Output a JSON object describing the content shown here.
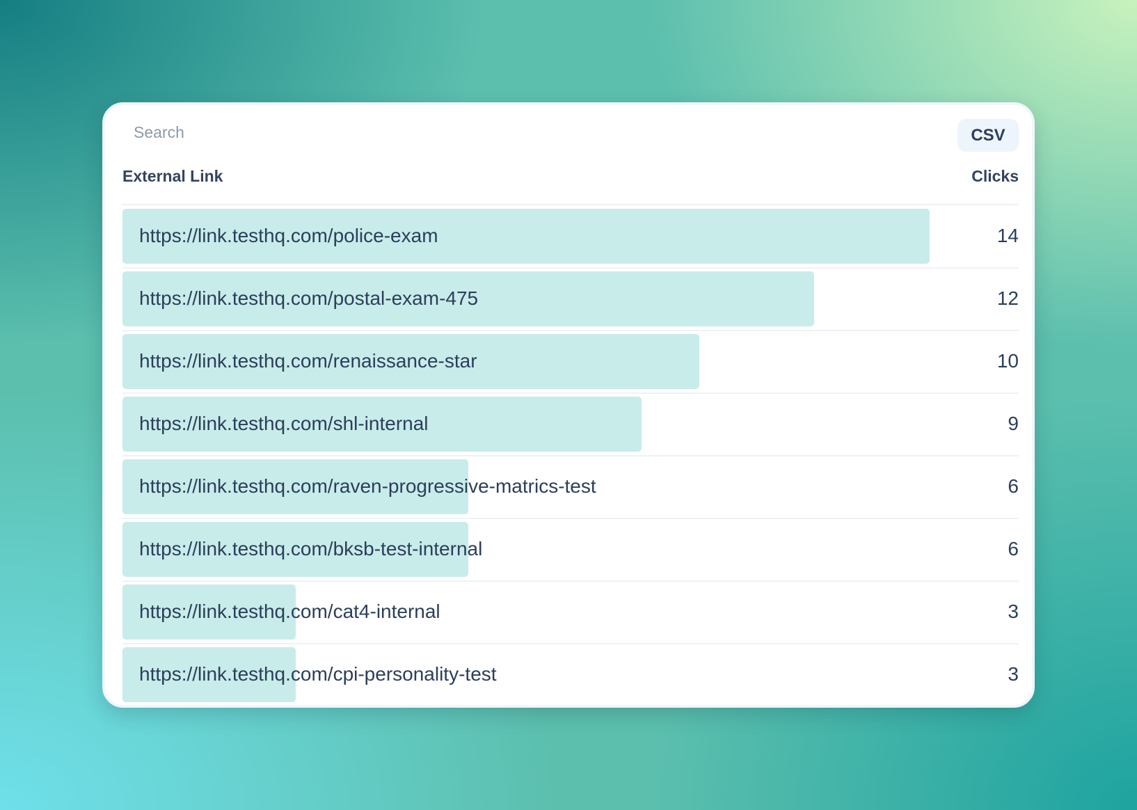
{
  "search": {
    "placeholder": "Search"
  },
  "csv_button": "CSV",
  "table": {
    "columns": [
      "External Link",
      "Clicks"
    ],
    "rows": [
      {
        "link": "https://link.testhq.com/police-exam",
        "clicks": 14
      },
      {
        "link": "https://link.testhq.com/postal-exam-475",
        "clicks": 12
      },
      {
        "link": "https://link.testhq.com/renaissance-star",
        "clicks": 10
      },
      {
        "link": "https://link.testhq.com/shl-internal",
        "clicks": 9
      },
      {
        "link": "https://link.testhq.com/raven-progressive-matrics-test",
        "clicks": 6
      },
      {
        "link": "https://link.testhq.com/bksb-test-internal",
        "clicks": 6
      },
      {
        "link": "https://link.testhq.com/cat4-internal",
        "clicks": 3
      },
      {
        "link": "https://link.testhq.com/cpi-personality-test",
        "clicks": 3
      }
    ]
  }
}
